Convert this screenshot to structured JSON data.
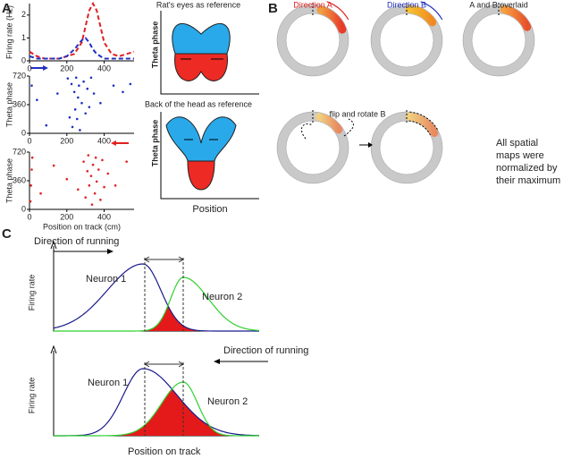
{
  "figure_labels": [
    "A",
    "B",
    "C"
  ],
  "panel_a": {
    "firing_chart": {
      "type": "line",
      "ylabel": "Firing rate (Hz)",
      "x": [
        0,
        40,
        80,
        120,
        160,
        200,
        240,
        280,
        300,
        320,
        340,
        360,
        380,
        400,
        440,
        480,
        520,
        560
      ],
      "series": [
        {
          "color": "#e02020",
          "line_style": "dashed",
          "values": [
            0.4,
            0.2,
            0.1,
            0.1,
            0.1,
            0.2,
            0.3,
            0.8,
            1.5,
            2.2,
            2.5,
            2.2,
            1.5,
            0.8,
            0.3,
            0.2,
            0.3,
            0.4
          ]
        },
        {
          "color": "#2030c0",
          "line_style": "dashed",
          "values": [
            0.2,
            0.1,
            0.1,
            0.1,
            0.1,
            0.2,
            0.5,
            0.9,
            1.0,
            0.8,
            0.5,
            0.3,
            0.2,
            0.1,
            0.1,
            0.1,
            0.1,
            0.1
          ]
        }
      ],
      "xlim": [
        0,
        560
      ],
      "ylim": [
        0,
        2.5
      ],
      "xticks": [
        0,
        200,
        400
      ],
      "yticks": [
        0,
        1,
        2
      ]
    },
    "raster_charts": [
      {
        "type": "scatter",
        "ylabel": "Theta phase",
        "color": "#2030c0",
        "x": [
          12,
          40,
          90,
          150,
          205,
          215,
          225,
          230,
          240,
          245,
          250,
          255,
          260,
          265,
          270,
          280,
          290,
          300,
          310,
          320,
          330,
          345,
          380,
          450,
          500,
          540
        ],
        "values": [
          600,
          420,
          100,
          500,
          690,
          200,
          620,
          80,
          520,
          300,
          700,
          180,
          450,
          600,
          40,
          380,
          650,
          250,
          560,
          330,
          700,
          500,
          380,
          600,
          520,
          620
        ],
        "xlim": [
          0,
          560
        ],
        "ylim": [
          0,
          720
        ],
        "xticks": [
          0,
          200,
          400
        ],
        "yticks": [
          0,
          360,
          720
        ]
      },
      {
        "type": "scatter",
        "ylabel": "Theta phase",
        "xlabel": "Position on track (cm)",
        "color": "#e02020",
        "x": [
          5,
          8,
          12,
          15,
          60,
          130,
          200,
          260,
          290,
          300,
          310,
          315,
          320,
          330,
          335,
          340,
          350,
          355,
          360,
          370,
          380,
          390,
          400,
          420,
          460,
          520
        ],
        "values": [
          100,
          300,
          500,
          650,
          200,
          550,
          380,
          250,
          600,
          150,
          480,
          680,
          300,
          420,
          60,
          560,
          200,
          650,
          350,
          500,
          120,
          620,
          280,
          450,
          300,
          600
        ],
        "xlim": [
          0,
          560
        ],
        "ylim": [
          0,
          720
        ],
        "xticks": [
          0,
          200,
          400
        ],
        "yticks": [
          0,
          360,
          720
        ]
      }
    ],
    "schematic": {
      "top_title": "Rat's eyes as reference",
      "bottom_title": "Back of the head as reference",
      "ylabel": "Theta phase",
      "xlabel": "Position"
    }
  },
  "panel_b": {
    "direction_a": "Direction A",
    "direction_b": "Direction B",
    "overlaid": "A and B overlaid",
    "flip": "flip and rotate B",
    "note": [
      "All spatial",
      "maps were",
      "normalized by",
      "their maximum"
    ]
  },
  "panel_c": {
    "direction_top": "Direction of running",
    "direction_bottom": "Direction of running",
    "ylabel": "Firing rate",
    "neuron_1": "Neuron 1",
    "neuron_2": "Neuron 2",
    "xlabel": "Position on track"
  }
}
